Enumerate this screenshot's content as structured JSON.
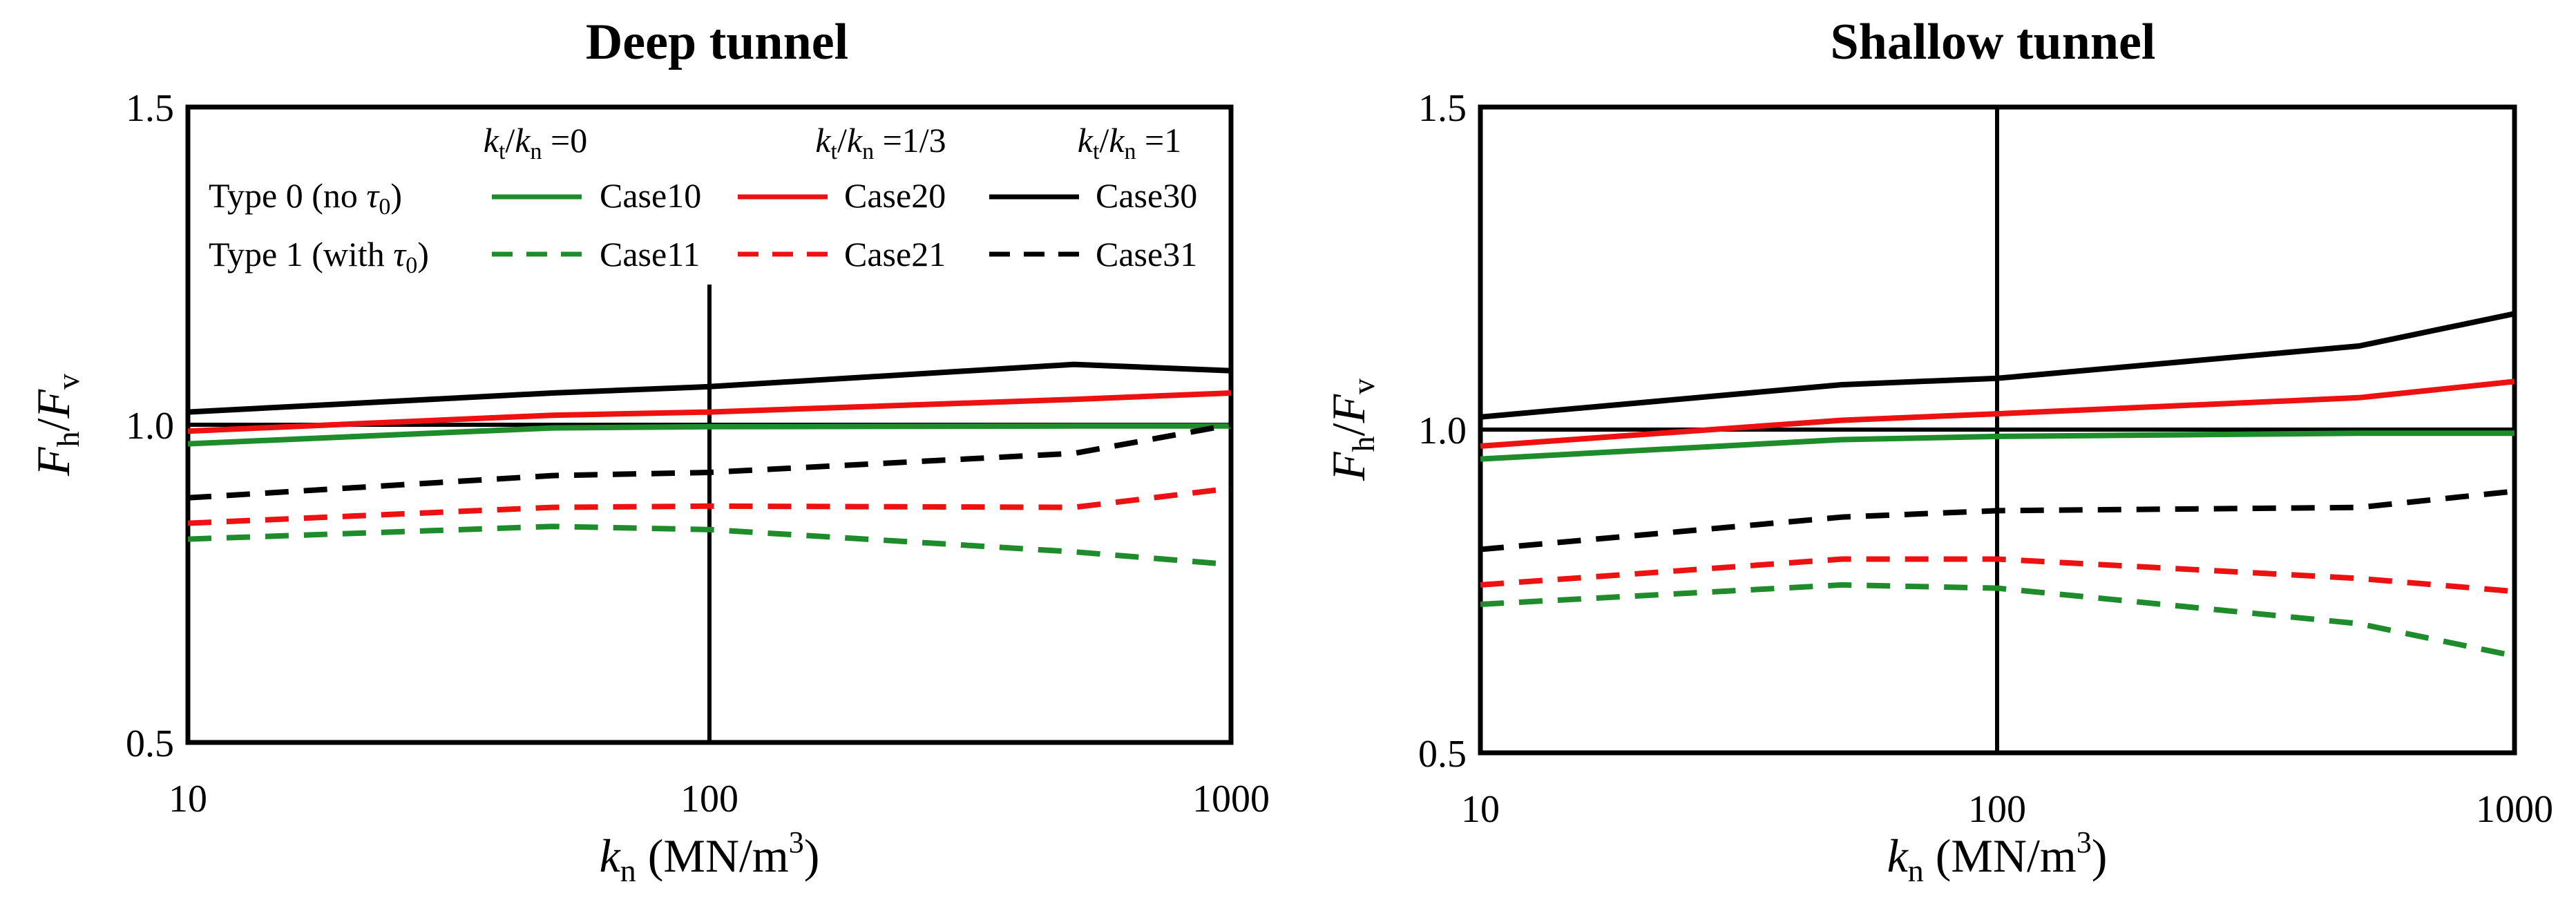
{
  "chart_data": [
    {
      "type": "line",
      "title": "Deep tunnel",
      "xscale": "log",
      "xlim": [
        10,
        1000
      ],
      "ylim": [
        0.5,
        1.5
      ],
      "xticks": [
        "10",
        "100",
        "1000"
      ],
      "yticks": [
        "0.5",
        "1.0",
        "1.5"
      ],
      "xlabel": {
        "main": "k",
        "sub": "n",
        "rest": " (MN/m",
        "sup": "3",
        "end": ")"
      },
      "ylabel": {
        "a": "F",
        "a_sub": "h",
        "sep": "/",
        "b": "F",
        "b_sub": "v"
      },
      "reference_lines": {
        "y": 1.0,
        "x": 100
      },
      "legend": {
        "headers": [
          {
            "a": "k",
            "a_sub": "t",
            "sep": "/",
            "b": "k",
            "b_sub": "n",
            "val": " =0"
          },
          {
            "a": "k",
            "a_sub": "t",
            "sep": "/",
            "b": "k",
            "b_sub": "n",
            "val": " =1/3"
          },
          {
            "a": "k",
            "a_sub": "t",
            "sep": "/",
            "b": "k",
            "b_sub": "n",
            "val": " =1"
          }
        ],
        "rows": [
          {
            "pre": "Type 0 (no ",
            "sym": "τ",
            "sub": "0",
            "post": ")"
          },
          {
            "pre": "Type 1 (with ",
            "sym": "τ",
            "sub": "0",
            "post": ")"
          }
        ]
      },
      "x": [
        10,
        50,
        100,
        500,
        1000
      ],
      "series": [
        {
          "name": "Case10",
          "color": "#1e8c2a",
          "dash": false,
          "values": [
            0.97,
            0.995,
            0.997,
            0.998,
            0.998
          ]
        },
        {
          "name": "Case20",
          "color": "#ee1111",
          "dash": false,
          "values": [
            0.99,
            1.015,
            1.02,
            1.04,
            1.05
          ]
        },
        {
          "name": "Case30",
          "color": "#000000",
          "dash": false,
          "values": [
            1.02,
            1.05,
            1.06,
            1.095,
            1.085
          ]
        },
        {
          "name": "Case11",
          "color": "#1e8c2a",
          "dash": true,
          "values": [
            0.82,
            0.84,
            0.835,
            0.8,
            0.78
          ]
        },
        {
          "name": "Case21",
          "color": "#ee1111",
          "dash": true,
          "values": [
            0.845,
            0.87,
            0.872,
            0.87,
            0.9
          ]
        },
        {
          "name": "Case31",
          "color": "#000000",
          "dash": true,
          "values": [
            0.885,
            0.92,
            0.925,
            0.955,
            1.0
          ]
        }
      ]
    },
    {
      "type": "line",
      "title": "Shallow tunnel",
      "xscale": "log",
      "xlim": [
        10,
        1000
      ],
      "ylim": [
        0.5,
        1.5
      ],
      "xticks": [
        "10",
        "100",
        "1000"
      ],
      "yticks": [
        "0.5",
        "1.0",
        "1.5"
      ],
      "xlabel": {
        "main": "k",
        "sub": "n",
        "rest": " (MN/m",
        "sup": "3",
        "end": ")"
      },
      "ylabel": {
        "a": "F",
        "a_sub": "h",
        "sep": "/",
        "b": "F",
        "b_sub": "v"
      },
      "reference_lines": {
        "y": 1.0,
        "x": 100
      },
      "x": [
        10,
        50,
        100,
        500,
        1000
      ],
      "series": [
        {
          "name": "Case10",
          "color": "#1e8c2a",
          "dash": false,
          "values": [
            0.955,
            0.985,
            0.99,
            0.995,
            0.995
          ]
        },
        {
          "name": "Case20",
          "color": "#ee1111",
          "dash": false,
          "values": [
            0.975,
            1.015,
            1.025,
            1.05,
            1.075
          ]
        },
        {
          "name": "Case30",
          "color": "#000000",
          "dash": false,
          "values": [
            1.02,
            1.07,
            1.08,
            1.13,
            1.18
          ]
        },
        {
          "name": "Case11",
          "color": "#1e8c2a",
          "dash": true,
          "values": [
            0.73,
            0.76,
            0.755,
            0.7,
            0.65
          ]
        },
        {
          "name": "Case21",
          "color": "#ee1111",
          "dash": true,
          "values": [
            0.76,
            0.8,
            0.8,
            0.77,
            0.75
          ]
        },
        {
          "name": "Case31",
          "color": "#000000",
          "dash": true,
          "values": [
            0.815,
            0.865,
            0.875,
            0.88,
            0.905
          ]
        }
      ]
    }
  ]
}
